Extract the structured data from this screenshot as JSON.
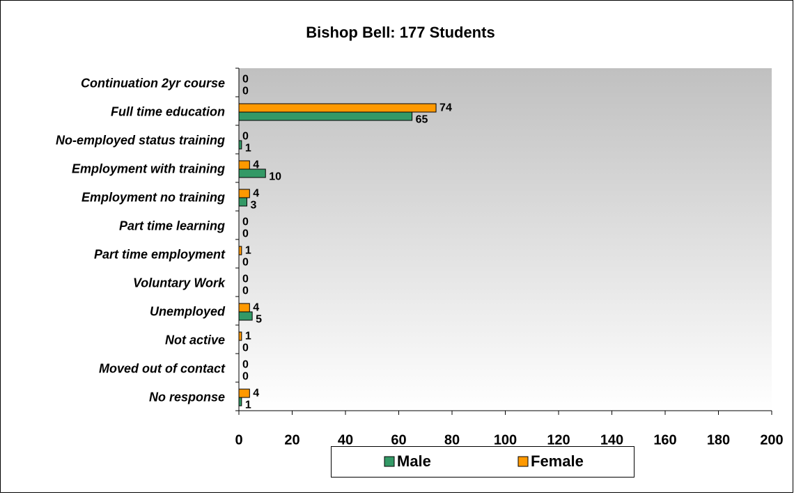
{
  "chart_data": {
    "type": "hbar",
    "title": "Bishop Bell: 177 Students",
    "categories": [
      "Continuation 2yr course",
      "Full time education",
      "No-employed status training",
      "Employment with training",
      "Employment no training",
      "Part time learning",
      "Part time employment",
      "Voluntary Work",
      "Unemployed",
      "Not active",
      "Moved out of contact",
      "No response"
    ],
    "series": [
      {
        "name": "Male",
        "color": "#339966",
        "values": [
          0,
          65,
          1,
          10,
          3,
          0,
          0,
          0,
          5,
          0,
          0,
          1
        ]
      },
      {
        "name": "Female",
        "color": "#ff9900",
        "values": [
          0,
          74,
          0,
          4,
          4,
          0,
          1,
          0,
          4,
          1,
          0,
          4
        ]
      }
    ],
    "xlim": [
      0,
      200
    ],
    "xticks": [
      0,
      20,
      40,
      60,
      80,
      100,
      120,
      140,
      160,
      180,
      200
    ],
    "legend": "bottom"
  }
}
